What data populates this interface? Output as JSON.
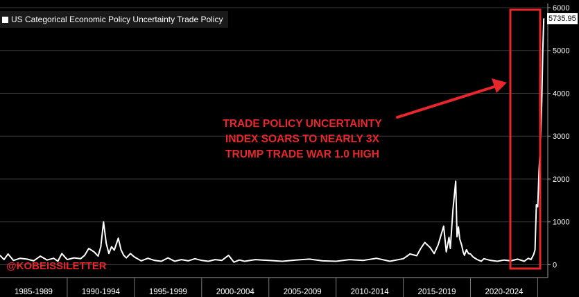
{
  "legend": {
    "label": "US Categorical Economic Policy Uncertainty Trade Policy"
  },
  "annotation": {
    "lines": [
      "TRADE POLICY UNCERTAINTY",
      "INDEX SOARS TO NEARLY 3X",
      "TRUMP TRADE WAR 1.0 HIGH"
    ]
  },
  "handle": "@KOBEISSILETTER",
  "last_value_label": "5735.95",
  "colors": {
    "background": "#000000",
    "line": "#ffffff",
    "annotation": "#e8262c",
    "grid": "#3a3a3a"
  },
  "chart_data": {
    "type": "line",
    "title": "US Categorical Economic Policy Uncertainty Trade Policy",
    "xlabel": "",
    "ylabel": "",
    "ylim": [
      -300,
      6000
    ],
    "xlim": [
      1985,
      2025.75
    ],
    "grid": true,
    "y_ticks": [
      0,
      1000,
      2000,
      3000,
      4000,
      5000,
      6000
    ],
    "x_tick_labels": [
      "1985-1989",
      "1990-1994",
      "1995-1999",
      "2000-2004",
      "2005-2009",
      "2010-2014",
      "2015-2019",
      "2020-2024"
    ],
    "last_value": 5735.95,
    "series": [
      {
        "name": "US Categorical Economic Policy Uncertainty Trade Policy",
        "x": [
          1985.0,
          1985.3,
          1985.6,
          1986.0,
          1986.5,
          1987.0,
          1987.5,
          1988.0,
          1988.5,
          1989.0,
          1989.3,
          1989.6,
          1990.0,
          1990.5,
          1991.0,
          1991.3,
          1991.6,
          1992.0,
          1992.3,
          1992.5,
          1992.7,
          1992.9,
          1993.1,
          1993.3,
          1993.5,
          1993.8,
          1994.0,
          1994.2,
          1994.4,
          1994.7,
          1995.0,
          1995.5,
          1996.0,
          1996.5,
          1997.0,
          1997.5,
          1998.0,
          1998.5,
          1999.0,
          1999.5,
          2000.0,
          2000.5,
          2001.0,
          2001.5,
          2002.0,
          2002.4,
          2002.8,
          2003.2,
          2004.0,
          2005.0,
          2006.0,
          2007.0,
          2008.0,
          2009.0,
          2010.0,
          2011.0,
          2012.0,
          2013.0,
          2014.0,
          2015.0,
          2015.5,
          2016.0,
          2016.3,
          2016.6,
          2017.0,
          2017.3,
          2017.6,
          2018.0,
          2018.2,
          2018.4,
          2018.5,
          2018.7,
          2018.9,
          2019.0,
          2019.1,
          2019.2,
          2019.35,
          2019.45,
          2019.55,
          2019.7,
          2019.85,
          2020.0,
          2020.2,
          2020.5,
          2020.8,
          2021.0,
          2021.5,
          2022.0,
          2022.5,
          2023.0,
          2023.5,
          2024.0,
          2024.3,
          2024.5,
          2024.7,
          2024.8,
          2024.9,
          2025.0,
          2025.1,
          2025.2,
          2025.3,
          2025.38,
          2025.45,
          2025.5
        ],
        "values": [
          220,
          120,
          250,
          100,
          150,
          130,
          90,
          200,
          110,
          150,
          80,
          260,
          120,
          160,
          140,
          220,
          380,
          300,
          200,
          420,
          1000,
          500,
          260,
          420,
          340,
          620,
          350,
          220,
          160,
          260,
          180,
          90,
          150,
          100,
          80,
          160,
          80,
          120,
          90,
          140,
          100,
          80,
          120,
          100,
          220,
          60,
          110,
          80,
          120,
          100,
          80,
          110,
          130,
          90,
          80,
          120,
          100,
          150,
          80,
          140,
          250,
          210,
          380,
          520,
          400,
          260,
          470,
          900,
          300,
          640,
          380,
          1300,
          1950,
          650,
          880,
          600,
          450,
          300,
          220,
          350,
          260,
          250,
          180,
          120,
          80,
          140,
          100,
          80,
          110,
          90,
          130,
          80,
          150,
          120,
          240,
          350,
          1400,
          1350,
          2200,
          2800,
          3800,
          5000,
          5735.95,
          5735.95
        ]
      }
    ]
  }
}
